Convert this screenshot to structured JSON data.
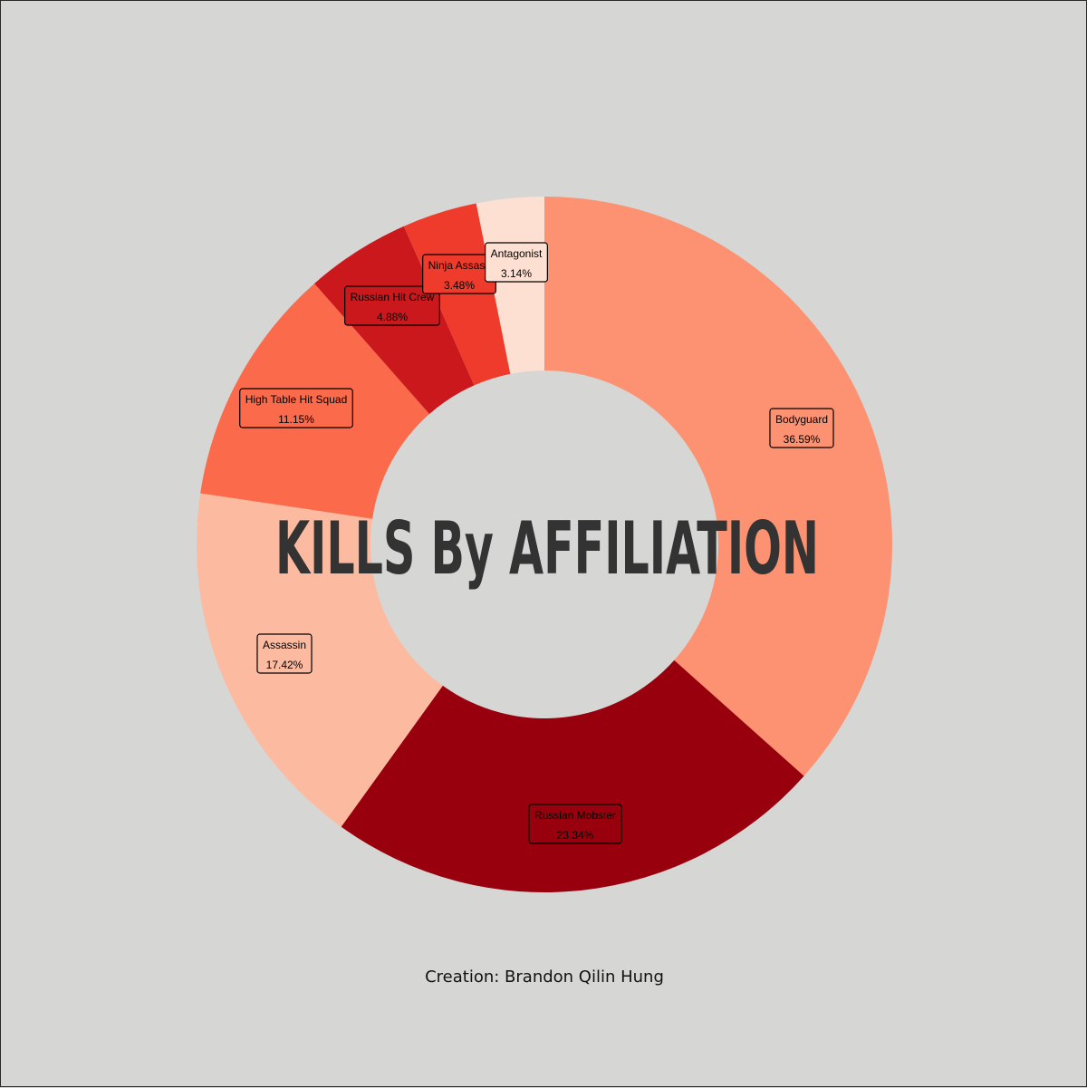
{
  "chart_data": {
    "type": "pie",
    "variant": "donut",
    "title": "KILLS By AFFILIATION",
    "start_angle": "12 o'clock",
    "direction": "clockwise",
    "slices": [
      {
        "label": "Bodyguard",
        "value": 36.59,
        "display": "36.59%",
        "color": "#fc9272"
      },
      {
        "label": "Russian Mobster",
        "value": 23.34,
        "display": "23.34%",
        "color": "#99000d"
      },
      {
        "label": "Assassin",
        "value": 17.42,
        "display": "17.42%",
        "color": "#fcbba1"
      },
      {
        "label": "High Table Hit Squad",
        "value": 11.15,
        "display": "11.15%",
        "color": "#fb6a4a"
      },
      {
        "label": "Russian Hit Crew",
        "value": 4.88,
        "display": "4.88%",
        "color": "#cb181d"
      },
      {
        "label": "Ninja Assassin",
        "display_label": "Ninja Assass",
        "value": 3.48,
        "display": "3.48%",
        "color": "#ef3b2c"
      },
      {
        "label": "Antagonist",
        "value": 3.14,
        "display": "3.14%",
        "color": "#fee0d2"
      }
    ]
  },
  "footer": {
    "credit": "Creation: Brandon Qilin Hung"
  },
  "colors": {
    "background": "#d6d6d4",
    "title": "#333333"
  }
}
